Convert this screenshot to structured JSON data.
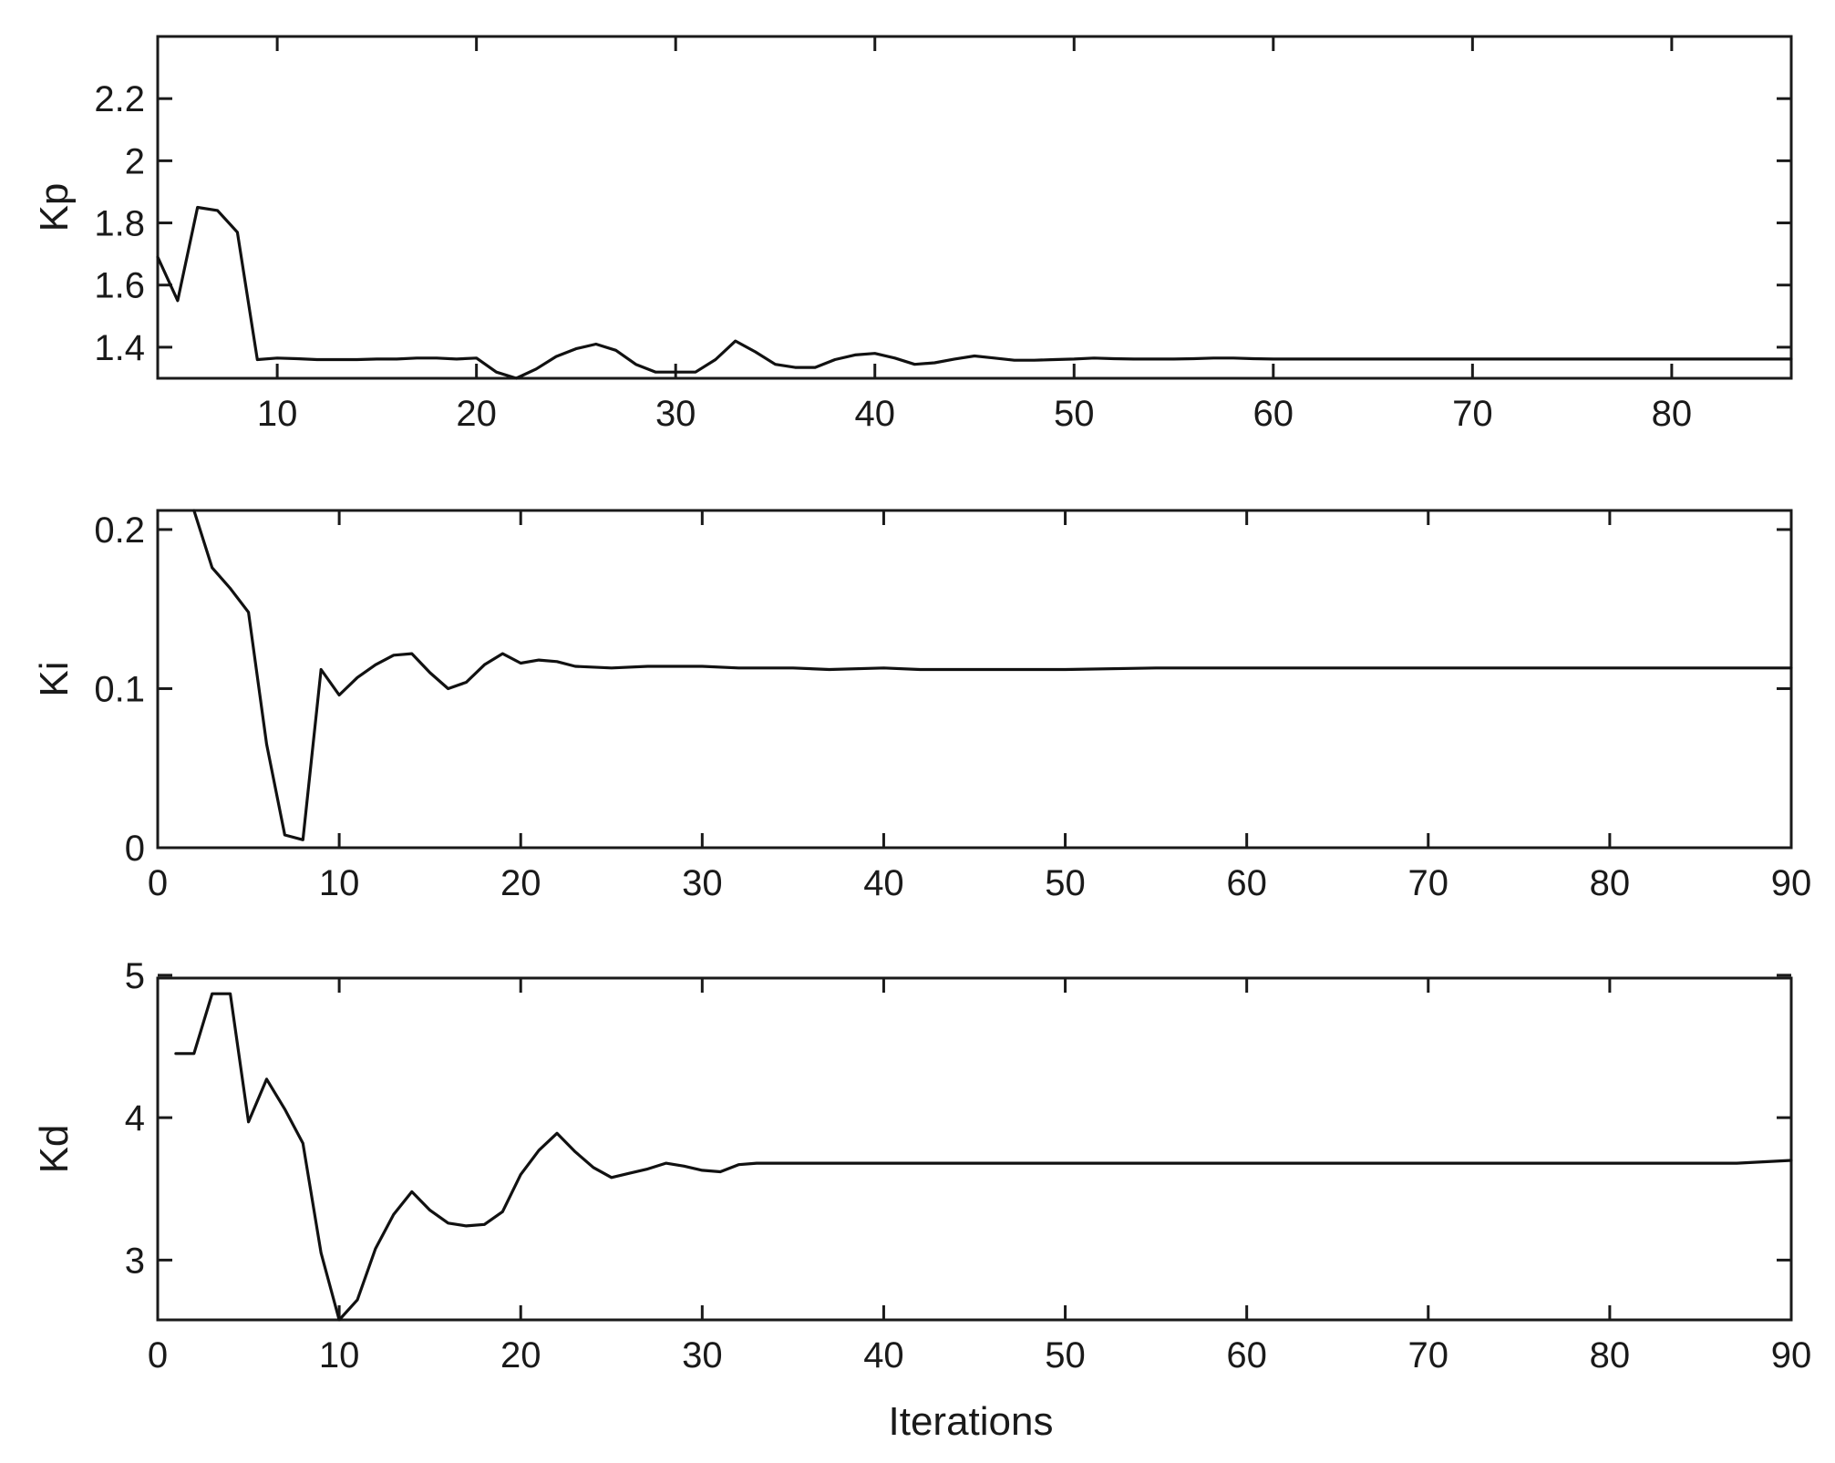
{
  "chart_data": [
    {
      "type": "line",
      "ylabel": "Kp",
      "xlabel": "",
      "xlim": [
        4,
        86
      ],
      "ylim": [
        1.3,
        2.4
      ],
      "xticks": [
        10,
        20,
        30,
        40,
        50,
        60,
        70,
        80
      ],
      "yticks": [
        1.4,
        1.6,
        1.8,
        2.0,
        2.2
      ],
      "xtick_labels": [
        "10",
        "20",
        "30",
        "40",
        "50",
        "60",
        "70",
        "80"
      ],
      "ytick_labels": [
        "1.4",
        "1.6",
        "1.8",
        "2",
        "2.2"
      ],
      "grid": false,
      "x": [
        4,
        5,
        6,
        7,
        8,
        9,
        10,
        11,
        12,
        13,
        14,
        15,
        16,
        17,
        18,
        19,
        20,
        21,
        22,
        23,
        24,
        25,
        26,
        27,
        28,
        29,
        30,
        31,
        32,
        33,
        34,
        35,
        36,
        37,
        38,
        39,
        40,
        41,
        42,
        43,
        44,
        45,
        46,
        47,
        48,
        49,
        50,
        51,
        52,
        53,
        54,
        55,
        56,
        57,
        58,
        59,
        60,
        62,
        64,
        66,
        68,
        70,
        75,
        80,
        86
      ],
      "y": [
        1.69,
        1.55,
        1.85,
        1.84,
        1.77,
        1.36,
        1.365,
        1.363,
        1.36,
        1.36,
        1.36,
        1.362,
        1.362,
        1.365,
        1.365,
        1.362,
        1.365,
        1.32,
        1.3,
        1.33,
        1.37,
        1.395,
        1.41,
        1.39,
        1.345,
        1.32,
        1.32,
        1.32,
        1.36,
        1.42,
        1.385,
        1.345,
        1.335,
        1.335,
        1.36,
        1.375,
        1.38,
        1.365,
        1.345,
        1.35,
        1.362,
        1.372,
        1.365,
        1.358,
        1.358,
        1.36,
        1.362,
        1.365,
        1.363,
        1.362,
        1.362,
        1.362,
        1.363,
        1.365,
        1.365,
        1.363,
        1.362,
        1.362,
        1.362,
        1.362,
        1.362,
        1.362,
        1.362,
        1.362,
        1.362
      ]
    },
    {
      "type": "line",
      "ylabel": "Ki",
      "xlabel": "",
      "xlim": [
        0,
        90
      ],
      "ylim": [
        0,
        0.212
      ],
      "xticks": [
        0,
        10,
        20,
        30,
        40,
        50,
        60,
        70,
        80,
        90
      ],
      "yticks": [
        0,
        0.1,
        0.2
      ],
      "xtick_labels": [
        "0",
        "10",
        "20",
        "30",
        "40",
        "50",
        "60",
        "70",
        "80",
        "90"
      ],
      "ytick_labels": [
        "0",
        "0.1",
        "0.2"
      ],
      "grid": false,
      "x": [
        2,
        3,
        4,
        5,
        6,
        7,
        8,
        9,
        10,
        11,
        12,
        13,
        14,
        15,
        16,
        17,
        18,
        19,
        20,
        21,
        22,
        23,
        25,
        27,
        30,
        32,
        35,
        37,
        40,
        42,
        45,
        47,
        50,
        55,
        60,
        70,
        80,
        90
      ],
      "y": [
        0.212,
        0.176,
        0.163,
        0.148,
        0.065,
        0.008,
        0.005,
        0.112,
        0.096,
        0.107,
        0.115,
        0.121,
        0.122,
        0.11,
        0.1,
        0.104,
        0.115,
        0.122,
        0.116,
        0.118,
        0.117,
        0.114,
        0.113,
        0.114,
        0.114,
        0.113,
        0.113,
        0.112,
        0.113,
        0.112,
        0.112,
        0.112,
        0.112,
        0.113,
        0.113,
        0.113,
        0.113,
        0.113
      ]
    },
    {
      "type": "line",
      "ylabel": "Kd",
      "xlabel": "Iterations",
      "xlim": [
        0,
        90
      ],
      "ylim": [
        2.58,
        4.98
      ],
      "xticks": [
        0,
        10,
        20,
        30,
        40,
        50,
        60,
        70,
        80,
        90
      ],
      "yticks": [
        3,
        4,
        5
      ],
      "xtick_labels": [
        "0",
        "10",
        "20",
        "30",
        "40",
        "50",
        "60",
        "70",
        "80",
        "90"
      ],
      "ytick_labels": [
        "3",
        "4",
        "5"
      ],
      "grid": false,
      "x": [
        1,
        2,
        3,
        4,
        5,
        6,
        7,
        8,
        9,
        10,
        11,
        12,
        13,
        14,
        15,
        16,
        17,
        18,
        19,
        20,
        21,
        22,
        23,
        24,
        25,
        26,
        27,
        28,
        29,
        30,
        31,
        32,
        33,
        35,
        40,
        50,
        60,
        70,
        80,
        87,
        90
      ],
      "y": [
        4.45,
        4.45,
        4.87,
        4.87,
        3.97,
        4.27,
        4.06,
        3.82,
        3.05,
        2.58,
        2.72,
        3.08,
        3.32,
        3.48,
        3.35,
        3.26,
        3.24,
        3.25,
        3.34,
        3.6,
        3.77,
        3.89,
        3.76,
        3.65,
        3.58,
        3.61,
        3.64,
        3.68,
        3.66,
        3.63,
        3.62,
        3.67,
        3.68,
        3.68,
        3.68,
        3.68,
        3.68,
        3.68,
        3.68,
        3.68,
        3.7
      ]
    }
  ]
}
